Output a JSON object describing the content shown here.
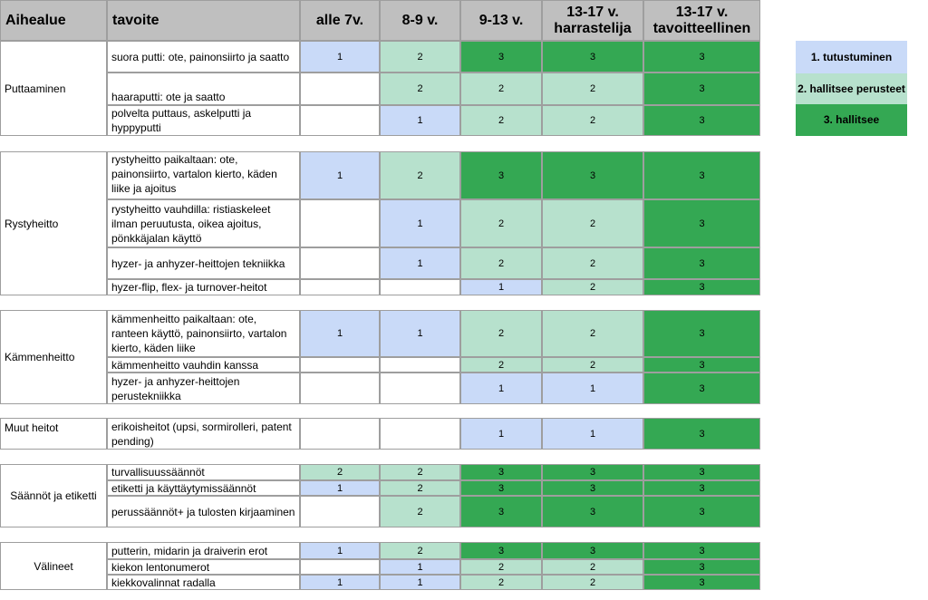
{
  "colors": {
    "level_1": "#c9daf8",
    "level_2": "#b7e1cd",
    "level_3": "#34a853",
    "empty": "#ffffff",
    "header": "#bfbfbf"
  },
  "header": {
    "area": "Aihealue",
    "goal": "tavoite",
    "ages": [
      "alle 7v.",
      "8-9 v.",
      "9-13 v.",
      "13-17 v. harrastelija",
      "13-17 v. tavoitteellinen"
    ]
  },
  "legend": [
    {
      "label": "1. tutustuminen",
      "level": 1
    },
    {
      "label": "2. hallitsee perusteet",
      "level": 2
    },
    {
      "label": "3. hallitsee",
      "level": 3
    }
  ],
  "sections": [
    {
      "area": "Puttaaminen",
      "rows": [
        {
          "goal": "suora putti: ote, painonsiirto ja saatto",
          "levels": [
            "1",
            "2",
            "3",
            "3",
            "3"
          ]
        },
        {
          "goal": "haaraputti: ote ja saatto",
          "levels": [
            "",
            "2",
            "2",
            "2",
            "3"
          ]
        },
        {
          "goal": "polvelta puttaus, askelputti ja hyppyputti",
          "levels": [
            "",
            "1",
            "2",
            "2",
            "3"
          ]
        }
      ]
    },
    {
      "area": "Rystyheitto",
      "rows": [
        {
          "goal": "rystyheitto paikaltaan: ote, painonsiirto, vartalon kierto, käden liike ja ajoitus",
          "levels": [
            "1",
            "2",
            "3",
            "3",
            "3"
          ]
        },
        {
          "goal": "rystyheitto vauhdilla: ristiaskeleet ilman peruutusta, oikea ajoitus, pönkkäjalan käyttö",
          "levels": [
            "",
            "1",
            "2",
            "2",
            "3"
          ]
        },
        {
          "goal": "hyzer- ja anhyzer-heittojen tekniikka",
          "levels": [
            "",
            "1",
            "2",
            "2",
            "3"
          ]
        },
        {
          "goal": "hyzer-flip, flex- ja turnover-heitot",
          "levels": [
            "",
            "",
            "1",
            "2",
            "3"
          ]
        }
      ]
    },
    {
      "area": "Kämmenheitto",
      "rows": [
        {
          "goal": "kämmenheitto paikaltaan: ote, ranteen käyttö, painonsiirto, vartalon kierto, käden liike",
          "levels": [
            "1",
            "1",
            "2",
            "2",
            "3"
          ]
        },
        {
          "goal": "kämmenheitto vauhdin kanssa",
          "levels": [
            "",
            "",
            "2",
            "2",
            "3"
          ]
        },
        {
          "goal": "hyzer- ja anhyzer-heittojen perustekniikka",
          "levels": [
            "",
            "",
            "1",
            "1",
            "3"
          ]
        }
      ]
    },
    {
      "area": "Muut heitot",
      "rows": [
        {
          "goal": "erikoisheitot (upsi, sormirolleri, patent pending)",
          "levels": [
            "",
            "",
            "1",
            "1",
            "3"
          ]
        }
      ]
    },
    {
      "area": "Säännöt ja etiketti",
      "rows": [
        {
          "goal": "turvallisuussäännöt",
          "levels": [
            "2",
            "2",
            "3",
            "3",
            "3"
          ]
        },
        {
          "goal": "etiketti ja käyttäytymissäännöt",
          "levels": [
            "1",
            "2",
            "3",
            "3",
            "3"
          ]
        },
        {
          "goal": "perussäännöt+ ja tulosten kirjaaminen",
          "levels": [
            "",
            "2",
            "3",
            "3",
            "3"
          ]
        }
      ]
    },
    {
      "area": "Välineet",
      "rows": [
        {
          "goal": "putterin, midarin ja draiverin erot",
          "levels": [
            "1",
            "2",
            "3",
            "3",
            "3"
          ]
        },
        {
          "goal": "kiekon lentonumerot",
          "levels": [
            "",
            "1",
            "2",
            "2",
            "3"
          ]
        },
        {
          "goal": "kiekkovalinnat radalla",
          "levels": [
            "1",
            "1",
            "2",
            "2",
            "3"
          ]
        }
      ]
    }
  ]
}
